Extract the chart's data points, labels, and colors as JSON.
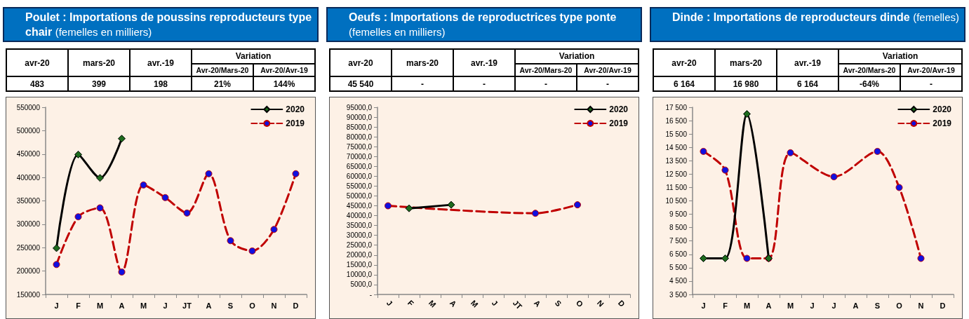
{
  "chart_data": [
    {
      "type": "line",
      "title": "Poulet : Importations de poussins reproducteurs type chair",
      "subtitle": "(femelles en milliers)",
      "annotations": [
        "avr-20",
        "mars-20",
        "avr.-19",
        "Variation",
        "Avr-20/Mars-20",
        "Avr-20/Avr-19",
        "483",
        "399",
        "198",
        "21%",
        "144%"
      ],
      "categories": [
        "J",
        "F",
        "M",
        "A",
        "M",
        "J",
        "JT",
        "A",
        "S",
        "O",
        "N",
        "D"
      ],
      "series": [
        {
          "name": "2020",
          "color": "#000000",
          "marker": "diamond",
          "line_style": "solid",
          "values": [
            249000,
            449000,
            399000,
            483000,
            null,
            null,
            null,
            null,
            null,
            null,
            null,
            null
          ]
        },
        {
          "name": "2019",
          "color": "#c00000",
          "marker": "circle",
          "line_style": "dashed",
          "values": [
            214000,
            316000,
            335000,
            198000,
            384000,
            357000,
            324000,
            408000,
            265000,
            243000,
            289000,
            408000
          ]
        }
      ],
      "ylim": [
        150000,
        550000
      ],
      "yticks": [
        150000,
        200000,
        250000,
        300000,
        350000,
        400000,
        450000,
        500000,
        550000
      ],
      "grid": false,
      "legend": "top right"
    },
    {
      "type": "line",
      "title": "Oeufs : Importations de reproductrices type ponte",
      "subtitle": "(femelles en milliers)",
      "annotations": [
        "avr-20",
        "mars-20",
        "avr.-19",
        "Variation",
        "Avr-20/Mars-20",
        "Avr-20/Avr-19",
        "45 540",
        "-",
        "-",
        "-",
        "-"
      ],
      "categories": [
        "J",
        "F",
        "M",
        "A",
        "M",
        "J",
        "JT",
        "A",
        "S",
        "O",
        "N",
        "D"
      ],
      "series": [
        {
          "name": "2020",
          "color": "#000000",
          "marker": "diamond",
          "line_style": "solid",
          "values": [
            null,
            43700,
            null,
            45500,
            null,
            null,
            null,
            null,
            null,
            null,
            null,
            null
          ]
        },
        {
          "name": "2019",
          "color": "#c00000",
          "marker": "circle",
          "line_style": "dashed",
          "values": [
            45000,
            null,
            null,
            null,
            null,
            null,
            null,
            41200,
            null,
            45500,
            null,
            null
          ]
        }
      ],
      "ylim": [
        0,
        95000
      ],
      "yticks": [
        {
          "value": 0,
          "label": "-"
        },
        {
          "value": 5000,
          "label": "5000,0"
        },
        {
          "value": 10000,
          "label": "10000,0"
        },
        {
          "value": 15000,
          "label": "15000,0"
        },
        {
          "value": 20000,
          "label": "20000,0"
        },
        {
          "value": 25000,
          "label": "25000,0"
        },
        {
          "value": 30000,
          "label": "30000,0"
        },
        {
          "value": 35000,
          "label": "35000,0"
        },
        {
          "value": 40000,
          "label": "40000,0"
        },
        {
          "value": 45000,
          "label": "45000,0"
        },
        {
          "value": 50000,
          "label": "50000,0"
        },
        {
          "value": 55000,
          "label": "55000,0"
        },
        {
          "value": 60000,
          "label": "60000,0"
        },
        {
          "value": 65000,
          "label": "65000,0"
        },
        {
          "value": 70000,
          "label": "70000,0"
        },
        {
          "value": 75000,
          "label": "75000,0"
        },
        {
          "value": 80000,
          "label": "80000,0"
        },
        {
          "value": 85000,
          "label": "85000,0"
        },
        {
          "value": 90000,
          "label": "90000,0"
        },
        {
          "value": 95000,
          "label": "95000,0"
        }
      ],
      "grid": false,
      "legend": "top right"
    },
    {
      "type": "line",
      "title": "Dinde : Importations de reproducteurs dinde",
      "subtitle": "(femelles)",
      "annotations": [
        "avr-20",
        "mars-20",
        "avr.-19",
        "Variation",
        "Avr-20/Mars-20",
        "Avr-20/Avr-19",
        "6 164",
        "16 980",
        "6 164",
        "-64%",
        "-"
      ],
      "categories": [
        "J",
        "F",
        "M",
        "A",
        "M",
        "J",
        "J",
        "A",
        "S",
        "O",
        "N",
        "D"
      ],
      "series": [
        {
          "name": "2020",
          "color": "#000000",
          "marker": "diamond",
          "line_style": "solid",
          "values": [
            6200,
            6200,
            17000,
            6200,
            null,
            null,
            null,
            null,
            null,
            null,
            null,
            null
          ]
        },
        {
          "name": "2019",
          "color": "#c00000",
          "marker": "circle",
          "line_style": "dashed",
          "values": [
            14200,
            12800,
            6200,
            6200,
            14100,
            null,
            12300,
            null,
            14200,
            11500,
            6200,
            null
          ]
        }
      ],
      "ylim": [
        3500,
        17500
      ],
      "yticks": [
        {
          "value": 3500,
          "label": "3 500"
        },
        {
          "value": 4500,
          "label": "4 500"
        },
        {
          "value": 5500,
          "label": "5 500"
        },
        {
          "value": 6500,
          "label": "6 500"
        },
        {
          "value": 7500,
          "label": "7 500"
        },
        {
          "value": 8500,
          "label": "8 500"
        },
        {
          "value": 9500,
          "label": "9 500"
        },
        {
          "value": 10500,
          "label": "10 500"
        },
        {
          "value": 11500,
          "label": "11 500"
        },
        {
          "value": 12500,
          "label": "12 500"
        },
        {
          "value": 13500,
          "label": "13 500"
        },
        {
          "value": 14500,
          "label": "14 500"
        },
        {
          "value": 15500,
          "label": "15 500"
        },
        {
          "value": 16500,
          "label": "16 500"
        },
        {
          "value": 17500,
          "label": "17 500"
        }
      ],
      "grid": false,
      "legend": "top right"
    }
  ]
}
